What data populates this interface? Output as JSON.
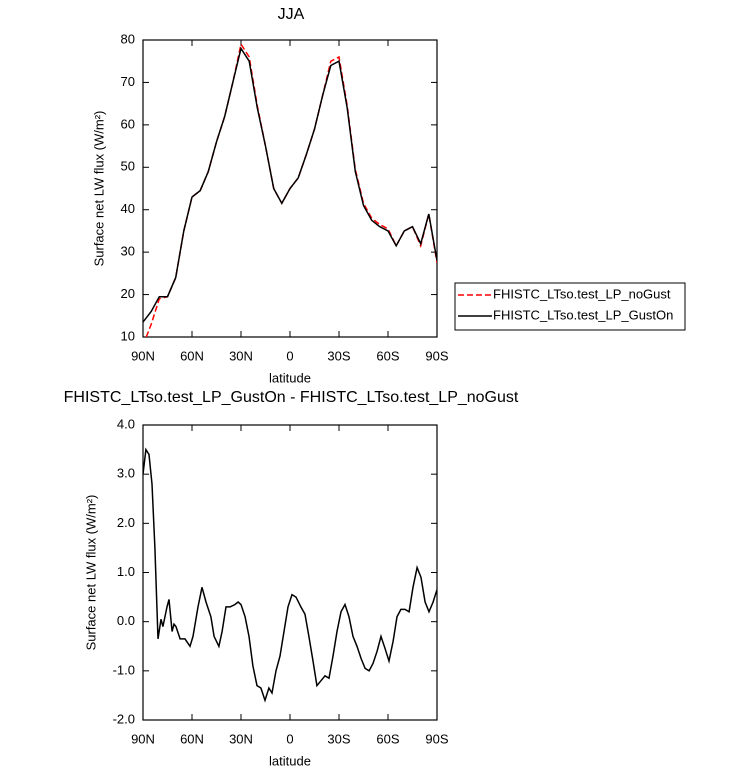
{
  "chart_data": [
    {
      "type": "line",
      "title": "JJA",
      "xlabel": "latitude",
      "ylabel": "Surface net LW flux (W/m²)",
      "x": [
        90,
        85,
        80,
        75,
        70,
        65,
        60,
        55,
        50,
        45,
        40,
        35,
        30,
        25,
        20,
        15,
        10,
        5,
        0,
        -5,
        -10,
        -15,
        -20,
        -25,
        -30,
        -35,
        -40,
        -45,
        -50,
        -55,
        -60,
        -65,
        -70,
        -75,
        -80,
        -85,
        -90
      ],
      "series": [
        {
          "name": "FHISTC_LTso.test_LP_noGust",
          "color": "#ff0000",
          "dash": true,
          "values": [
            8,
            13,
            19,
            19.5,
            24,
            35,
            43,
            44.5,
            49,
            56,
            62,
            70,
            79,
            76,
            64.5,
            55,
            45,
            41.5,
            45,
            47.5,
            53,
            59,
            67,
            75,
            76,
            64.5,
            49.5,
            41.5,
            38,
            36.5,
            35.5,
            31.5,
            35,
            36,
            31.5,
            39,
            27.5
          ]
        },
        {
          "name": "FHISTC_LTso.test_LP_GustOn",
          "color": "#000000",
          "dash": false,
          "values": [
            13.5,
            16,
            19.5,
            19.5,
            24,
            35,
            43,
            44.5,
            49,
            56,
            62,
            70,
            78,
            75,
            64,
            55,
            45,
            41.5,
            45,
            47.5,
            53,
            59,
            67,
            74,
            75,
            64,
            49,
            41,
            37.5,
            36,
            35,
            31.5,
            35,
            36,
            32,
            39,
            28
          ]
        }
      ],
      "xlim": [
        90,
        -90
      ],
      "xticks": [
        {
          "value": 90,
          "label": "90N"
        },
        {
          "value": 60,
          "label": "60N"
        },
        {
          "value": 30,
          "label": "30N"
        },
        0,
        {
          "value": -30,
          "label": "30S"
        },
        {
          "value": -60,
          "label": "60S"
        },
        {
          "value": -90,
          "label": "90S"
        }
      ],
      "ylim": [
        10,
        80
      ],
      "yticks": [
        10,
        20,
        30,
        40,
        50,
        60,
        70,
        80
      ],
      "legend": "right"
    },
    {
      "type": "line",
      "title": "FHISTC_LTso.test_LP_GustOn - FHISTC_LTso.test_LP_noGust",
      "xlabel": "latitude",
      "ylabel": "Surface net LW flux (W/m²)",
      "x": [
        90,
        88.2,
        86.3,
        84.5,
        82.7,
        80.8,
        79,
        77.8,
        75.3,
        74.1,
        72.2,
        71,
        69.8,
        67.3,
        64.3,
        61.2,
        59.4,
        56.3,
        53.9,
        51.4,
        48.4,
        46.5,
        43.5,
        41.6,
        39.2,
        36.7,
        33.7,
        31.8,
        30,
        27.5,
        25.1,
        22.7,
        20.2,
        17.8,
        15.3,
        12.9,
        11,
        8.6,
        6.1,
        3.7,
        1.2,
        -1.2,
        -3.7,
        -6.7,
        -9.2,
        -11.6,
        -14.1,
        -16.5,
        -19,
        -21.4,
        -23.9,
        -26.3,
        -28.8,
        -31.2,
        -33.7,
        -36.1,
        -38.6,
        -41,
        -43.5,
        -46,
        -48.4,
        -50.8,
        -53.3,
        -55.7,
        -58.2,
        -60.6,
        -63.1,
        -65.5,
        -67.9,
        -70.4,
        -72.9,
        -75.3,
        -77.8,
        -80.2,
        -82.7,
        -85.1,
        -87.6,
        -90
      ],
      "values": [
        3.0,
        3.5,
        3.4,
        2.8,
        1.5,
        -0.35,
        0.05,
        -0.1,
        0.3,
        0.45,
        -0.2,
        -0.05,
        -0.1,
        -0.35,
        -0.35,
        -0.5,
        -0.3,
        0.3,
        0.7,
        0.4,
        0.1,
        -0.3,
        -0.5,
        -0.2,
        0.3,
        0.3,
        0.35,
        0.4,
        0.35,
        0.1,
        -0.3,
        -0.9,
        -1.3,
        -1.35,
        -1.6,
        -1.35,
        -1.45,
        -1.0,
        -0.7,
        -0.2,
        0.3,
        0.55,
        0.5,
        0.3,
        0.15,
        -0.3,
        -0.8,
        -1.3,
        -1.2,
        -1.1,
        -1.15,
        -0.7,
        -0.2,
        0.2,
        0.35,
        0.1,
        -0.3,
        -0.5,
        -0.75,
        -0.95,
        -1.0,
        -0.85,
        -0.6,
        -0.3,
        -0.55,
        -0.8,
        -0.4,
        0.1,
        0.25,
        0.25,
        0.2,
        0.7,
        1.1,
        0.9,
        0.4,
        0.2,
        0.4,
        0.65
      ],
      "color": "#000000",
      "xlim": [
        90,
        -90
      ],
      "xticks": [
        {
          "value": 90,
          "label": "90N"
        },
        {
          "value": 60,
          "label": "60N"
        },
        {
          "value": 30,
          "label": "30N"
        },
        0,
        {
          "value": -30,
          "label": "30S"
        },
        {
          "value": -60,
          "label": "60S"
        },
        {
          "value": -90,
          "label": "90S"
        }
      ],
      "ylim": [
        -2,
        4
      ],
      "yticks": [
        {
          "value": -2,
          "label": "-2.0"
        },
        {
          "value": -1,
          "label": "-1.0"
        },
        {
          "value": 0,
          "label": "0.0"
        },
        {
          "value": 1,
          "label": "1.0"
        },
        {
          "value": 2,
          "label": "2.0"
        },
        {
          "value": 3,
          "label": "3.0"
        },
        {
          "value": 4,
          "label": "4.0"
        }
      ]
    }
  ]
}
